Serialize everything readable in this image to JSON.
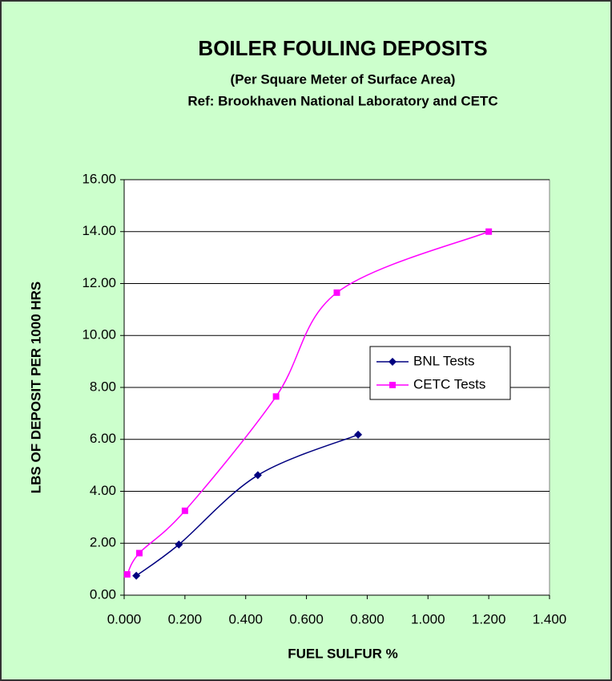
{
  "chart_data": {
    "type": "line",
    "smooth": true,
    "title": "BOILER FOULING DEPOSITS",
    "subtitle": [
      "(Per Square Meter of Surface Area)",
      "Ref:  Brookhaven National Laboratory and CETC"
    ],
    "xlabel": "FUEL SULFUR %",
    "ylabel": "LBS OF DEPOSIT PER 1000 HRS",
    "series": [
      {
        "name": "BNL Tests",
        "color": "#000080",
        "marker": "diamond",
        "x": [
          0.04,
          0.18,
          0.44,
          0.77
        ],
        "values": [
          0.75,
          1.95,
          4.62,
          6.18
        ]
      },
      {
        "name": "CETC Tests",
        "color": "#ff00ff",
        "marker": "square",
        "x": [
          0.01,
          0.05,
          0.2,
          0.5,
          0.7,
          1.2
        ],
        "values": [
          0.8,
          1.62,
          3.25,
          7.65,
          11.65,
          14.0
        ]
      }
    ],
    "xlim": [
      0,
      1.4
    ],
    "xticks": [
      {
        "value": 0,
        "label": "0.000"
      },
      {
        "value": 0.2,
        "label": "0.200"
      },
      {
        "value": 0.4,
        "label": "0.400"
      },
      {
        "value": 0.6,
        "label": "0.600"
      },
      {
        "value": 0.8,
        "label": "0.800"
      },
      {
        "value": 1.0,
        "label": "1.000"
      },
      {
        "value": 1.2,
        "label": "1.200"
      },
      {
        "value": 1.4,
        "label": "1.400"
      }
    ],
    "ylim": [
      0,
      16
    ],
    "yticks": [
      {
        "value": 0,
        "label": "0.00"
      },
      {
        "value": 2,
        "label": "2.00"
      },
      {
        "value": 4,
        "label": "4.00"
      },
      {
        "value": 6,
        "label": "6.00"
      },
      {
        "value": 8,
        "label": "8.00"
      },
      {
        "value": 10,
        "label": "10.00"
      },
      {
        "value": 12,
        "label": "12.00"
      },
      {
        "value": 14,
        "label": "14.00"
      },
      {
        "value": 16,
        "label": "16.00"
      }
    ],
    "grid": true,
    "legend": "right"
  }
}
